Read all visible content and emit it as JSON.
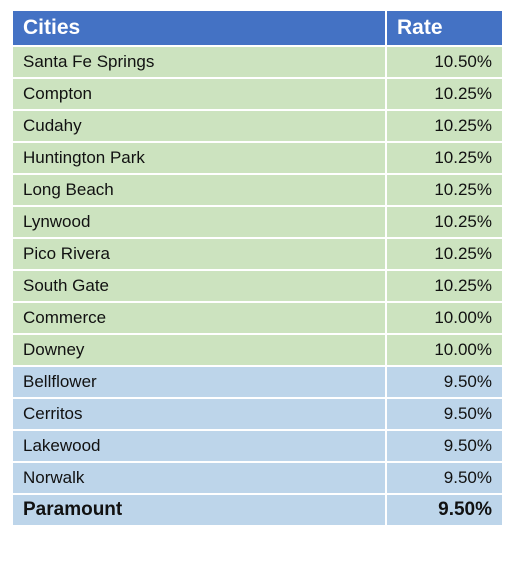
{
  "table": {
    "header": [
      "Cities",
      "Rate"
    ],
    "rows": [
      [
        "Santa Fe Springs",
        "10.50%"
      ],
      [
        "Compton",
        "10.25%"
      ],
      [
        "Cudahy",
        "10.25%"
      ],
      [
        "Huntington Park",
        "10.25%"
      ],
      [
        "Long Beach",
        "10.25%"
      ],
      [
        "Lynwood",
        "10.25%"
      ],
      [
        "Pico Rivera",
        "10.25%"
      ],
      [
        "South Gate",
        "10.25%"
      ],
      [
        "Commerce",
        "10.00%"
      ],
      [
        "Downey",
        "10.00%"
      ],
      [
        "Bellflower",
        "9.50%"
      ],
      [
        "Cerritos",
        "9.50%"
      ],
      [
        "Lakewood",
        "9.50%"
      ],
      [
        "Norwalk",
        "9.50%"
      ],
      [
        "Paramount",
        "9.50%"
      ]
    ]
  }
}
